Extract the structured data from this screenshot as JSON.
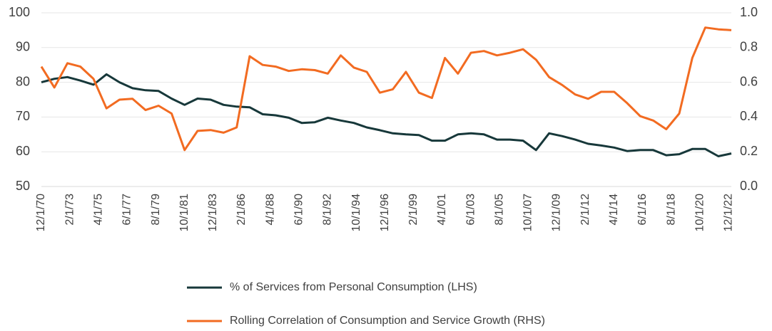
{
  "chart_data": {
    "type": "line",
    "xticks": [
      "12/1/70",
      "2/1/73",
      "4/1/75",
      "6/1/77",
      "8/1/79",
      "10/1/81",
      "12/1/83",
      "2/1/86",
      "4/1/88",
      "6/1/90",
      "8/1/92",
      "10/1/94",
      "12/1/96",
      "2/1/99",
      "4/1/01",
      "6/1/03",
      "8/1/05",
      "10/1/07",
      "12/1/09",
      "2/1/12",
      "4/1/14",
      "6/1/16",
      "8/1/18",
      "10/1/20",
      "12/1/22"
    ],
    "ylim": [
      50,
      100
    ],
    "yticks": [
      50,
      60,
      70,
      80,
      90,
      100
    ],
    "y2lim": [
      0,
      1
    ],
    "y2ticks": [
      {
        "value": 0,
        "label": "0.0"
      },
      0.2,
      0.4,
      0.6,
      0.8,
      {
        "value": 1,
        "label": "1.0"
      }
    ],
    "grid": true,
    "legend": "bottom",
    "series": [
      {
        "name": "% of Services from Personal Consumption (LHS)",
        "color": "#17383a",
        "values": [
          80,
          81,
          81.5,
          80.5,
          79.3,
          82.3,
          80,
          78.3,
          77.7,
          77.5,
          75.3,
          73.5,
          75.3,
          75,
          73.5,
          73,
          72.8,
          70.8,
          70.5,
          69.8,
          68.3,
          68.5,
          69.8,
          69,
          68.3,
          67,
          66.2,
          65.3,
          65,
          64.8,
          63.2,
          63.2,
          65,
          65.3,
          65,
          63.5,
          63.5,
          63.2,
          60.5,
          65.3,
          64.5,
          63.5,
          62.3,
          61.8,
          61.2,
          60.2,
          60.5,
          60.5,
          59,
          59.3,
          60.8,
          60.8,
          58.7,
          59.5
        ]
      },
      {
        "name": "Rolling Correlation of Consumption and Service Growth (RHS)",
        "color": "#f26b21",
        "axis": "y2",
        "values": [
          0.69,
          0.57,
          0.71,
          0.69,
          0.62,
          0.45,
          0.5,
          0.505,
          0.44,
          0.465,
          0.42,
          0.21,
          0.32,
          0.325,
          0.31,
          0.34,
          0.75,
          0.7,
          0.69,
          0.665,
          0.675,
          0.67,
          0.65,
          0.755,
          0.685,
          0.66,
          0.54,
          0.56,
          0.66,
          0.54,
          0.51,
          0.74,
          0.65,
          0.77,
          0.78,
          0.755,
          0.77,
          0.79,
          0.73,
          0.63,
          0.585,
          0.53,
          0.505,
          0.545,
          0.545,
          0.48,
          0.405,
          0.38,
          0.33,
          0.42,
          0.74,
          0.915,
          0.905,
          0.9
        ]
      }
    ]
  }
}
